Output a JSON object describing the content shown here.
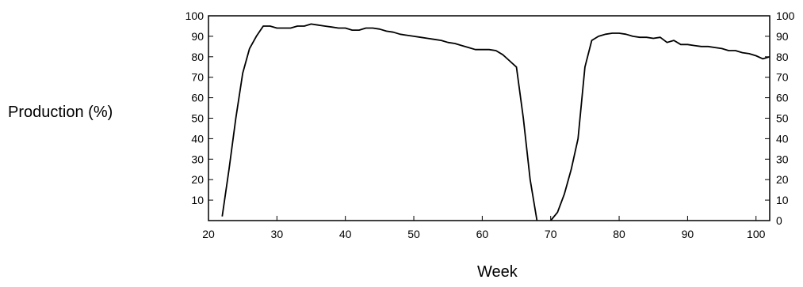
{
  "chart_data": {
    "type": "line",
    "title": "",
    "xlabel": "Week",
    "ylabel": "Production (%)",
    "xlim": [
      20,
      102
    ],
    "ylim": [
      0,
      100
    ],
    "x_ticks": [
      "20",
      "30",
      "40",
      "50",
      "60",
      "70",
      "80",
      "90",
      "100"
    ],
    "y_ticks_left": [
      "10",
      "20",
      "30",
      "40",
      "50",
      "60",
      "70",
      "80",
      "90",
      "100"
    ],
    "y_ticks_right": [
      "0",
      "10",
      "20",
      "30",
      "40",
      "50",
      "60",
      "70",
      "80",
      "90",
      "100"
    ],
    "grid": false,
    "series": [
      {
        "x": [
          22,
          23,
          24,
          25,
          26,
          27,
          28,
          29,
          30,
          31,
          32,
          33,
          34,
          35,
          36,
          37,
          38,
          39,
          40,
          41,
          42,
          43,
          44,
          45,
          46,
          47,
          48,
          49,
          50,
          51,
          52,
          53,
          54,
          55,
          56,
          57,
          58,
          59,
          60,
          61,
          62,
          63,
          64,
          65,
          66,
          67,
          68
        ],
        "y": [
          2,
          25,
          50,
          72,
          84,
          90,
          95,
          95,
          94,
          94,
          94,
          95,
          95,
          96,
          95.5,
          95,
          94.5,
          94,
          94,
          93,
          93,
          94,
          94,
          93.5,
          92.5,
          92,
          91,
          90.5,
          90,
          89.5,
          89,
          88.5,
          88,
          87,
          86.5,
          85.5,
          84.5,
          83.5,
          83.5,
          83.5,
          83,
          81,
          78,
          75,
          50,
          20,
          0
        ]
      },
      {
        "x": [
          70,
          71,
          72,
          73,
          74,
          75,
          76,
          77,
          78,
          79,
          80,
          81,
          82,
          83,
          84,
          85,
          86,
          87,
          88,
          89,
          90,
          91,
          92,
          93,
          94,
          95,
          96,
          97,
          98,
          99,
          100,
          101,
          102
        ],
        "y": [
          0,
          4,
          13,
          25,
          40,
          75,
          88,
          90,
          91,
          91.5,
          91.5,
          91,
          90,
          89.5,
          89.5,
          89,
          89.5,
          87,
          88,
          86,
          86,
          85.5,
          85,
          85,
          84.5,
          84,
          83,
          83,
          82,
          81.5,
          80.5,
          79,
          80
        ]
      }
    ]
  }
}
